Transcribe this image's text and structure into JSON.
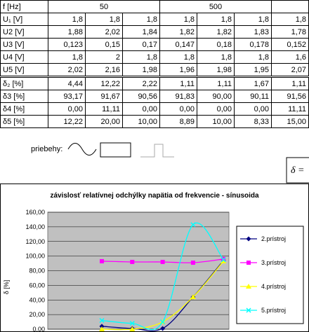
{
  "table": {
    "header": {
      "label": "f [Hz]",
      "groups": [
        "50",
        "500"
      ]
    },
    "rows": [
      {
        "label": "U₁ [V]",
        "cells": [
          "1,8",
          "1,8",
          "1,8",
          "1,8",
          "1,8",
          "1,8",
          "1,8"
        ]
      },
      {
        "label": "U2 [V]",
        "cells": [
          "1,88",
          "2,02",
          "1,84",
          "1,82",
          "1,82",
          "1,83",
          "1,78"
        ]
      },
      {
        "label": "U3 [V]",
        "cells": [
          "0,123",
          "0,15",
          "0,17",
          "0,147",
          "0,18",
          "0,178",
          "0,152"
        ]
      },
      {
        "label": "U4 [V]",
        "cells": [
          "1,8",
          "2",
          "1,8",
          "1,8",
          "1,8",
          "1,8",
          "1,6"
        ]
      },
      {
        "label": "U5 [V]",
        "cells": [
          "2,02",
          "2,16",
          "1,98",
          "1,96",
          "1,98",
          "1,95",
          "2,07"
        ]
      },
      {
        "label": "δ₂ [%]",
        "cells": [
          "4,44",
          "12,22",
          "2,22",
          "1,11",
          "1,11",
          "1,67",
          "1,11"
        ]
      },
      {
        "label": "δ3 [%]",
        "cells": [
          "93,17",
          "91,67",
          "90,56",
          "91,83",
          "90,00",
          "90,11",
          "91,56"
        ]
      },
      {
        "label": "δ4 [%]",
        "cells": [
          "0,00",
          "11,11",
          "0,00",
          "0,00",
          "0,00",
          "0,00",
          "11,11"
        ]
      },
      {
        "label": "δ5 [%]",
        "cells": [
          "12,22",
          "20,00",
          "10,00",
          "8,89",
          "10,00",
          "8,33",
          "15,00"
        ]
      }
    ]
  },
  "waveforms_label": "priebehy:",
  "formula": "δ =",
  "chart_data": {
    "type": "line",
    "title": "závislosť relatívnej odchýlky napätia od frekvencie - sínusoida",
    "y_label": "δ [%]",
    "categories": [
      null,
      null,
      null,
      null,
      null
    ],
    "smooth": true,
    "grid": true,
    "legend": "right",
    "ylim": [
      0,
      160
    ],
    "yticks": [
      {
        "value": 0,
        "label": "0,00"
      },
      {
        "value": 20,
        "label": "20,00"
      },
      {
        "value": 40,
        "label": "40,00"
      },
      {
        "value": 60,
        "label": "60,00"
      },
      {
        "value": 80,
        "label": "80,00"
      },
      {
        "value": 100,
        "label": "100,00"
      },
      {
        "value": 120,
        "label": "120,00"
      },
      {
        "value": 140,
        "label": "140,00"
      },
      {
        "value": 160,
        "label": "160,00"
      }
    ],
    "series": [
      {
        "name": "2.prístroj",
        "color": "#000080",
        "marker": "diamond",
        "values": [
          4,
          1,
          1,
          44,
          94
        ]
      },
      {
        "name": "3.prístroj",
        "color": "#ff00ff",
        "marker": "square",
        "values": [
          93,
          92,
          92,
          91,
          96
        ]
      },
      {
        "name": "4.prístroj",
        "color": "#ffff00",
        "marker": "triangle",
        "values": [
          0,
          0,
          10,
          44,
          93
        ]
      },
      {
        "name": "5.prístroj",
        "color": "#00ffff",
        "marker": "x",
        "values": [
          12,
          8,
          10,
          143,
          95
        ]
      }
    ]
  }
}
